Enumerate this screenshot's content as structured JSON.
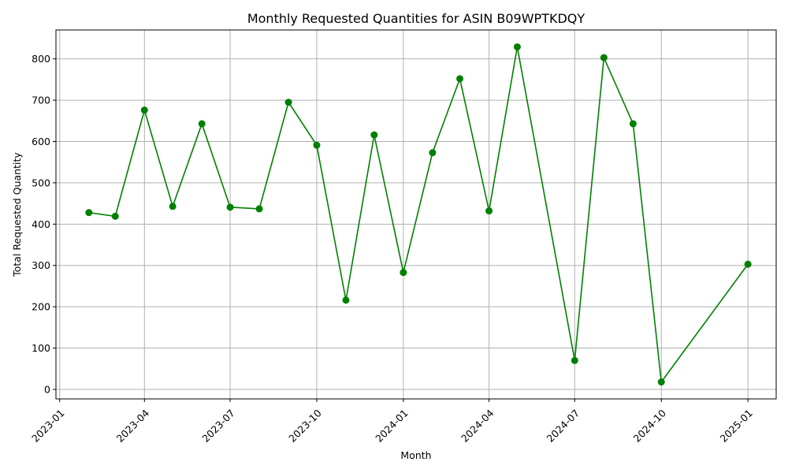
{
  "chart_data": {
    "type": "line",
    "title": "Monthly Requested Quantities for ASIN B09WPTKDQY",
    "xlabel": "Month",
    "ylabel": "Total Requested Quantity",
    "x_tick_labels": [
      "2023-01",
      "2023-04",
      "2023-07",
      "2023-10",
      "2024-01",
      "2024-04",
      "2024-07",
      "2024-10",
      "2025-01"
    ],
    "x_tick_dates": [
      "2023-01-01",
      "2023-04-01",
      "2023-07-01",
      "2023-10-01",
      "2024-01-01",
      "2024-04-01",
      "2024-07-01",
      "2024-10-01",
      "2025-01-01"
    ],
    "y_ticks": [
      0,
      100,
      200,
      300,
      400,
      500,
      600,
      700,
      800
    ],
    "xlim": [
      "2022-12-28",
      "2025-01-31"
    ],
    "ylim": [
      -23,
      870
    ],
    "grid": true,
    "color": "#008000",
    "marker": "circle",
    "series": [
      {
        "x": [
          "2023-02-01",
          "2023-03-01",
          "2023-04-01",
          "2023-05-01",
          "2023-06-01",
          "2023-07-01",
          "2023-08-01",
          "2023-09-01",
          "2023-10-01",
          "2023-11-01",
          "2023-12-01",
          "2024-01-01",
          "2024-02-01",
          "2024-03-01",
          "2024-04-01",
          "2024-05-01",
          "2024-07-01",
          "2024-08-01",
          "2024-09-01",
          "2024-10-01",
          "2025-01-01"
        ],
        "values": [
          428,
          419,
          676,
          443,
          643,
          441,
          437,
          695,
          591,
          216,
          616,
          283,
          573,
          752,
          432,
          829,
          70,
          803,
          643,
          18,
          303
        ]
      }
    ]
  }
}
